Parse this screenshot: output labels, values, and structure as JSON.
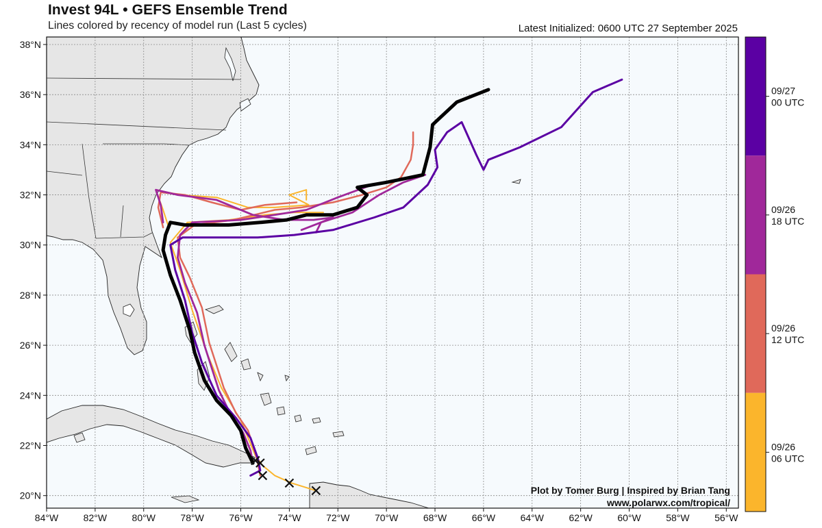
{
  "header": {
    "title": "Invest 94L • GEFS Ensemble Trend",
    "subtitle": "Lines colored by recency of model run (Last 5 cycles)",
    "initialized": "Latest Initialized: 0600 UTC 27 September 2025"
  },
  "credit": {
    "line1": "Plot by Tomer Burg | Inspired by Brian Tang",
    "line2": "www.polarwx.com/tropical/"
  },
  "colors": {
    "ocean": "#f6fafd",
    "land": "#e6e6e6",
    "latest": "#000000",
    "c_0927_00": "#5b00a3",
    "c_0926_18": "#a0289a",
    "c_0926_12": "#e0695a",
    "c_0926_06": "#fbb52c"
  },
  "axes": {
    "lon_labels": [
      "84°W",
      "82°W",
      "80°W",
      "78°W",
      "76°W",
      "74°W",
      "72°W",
      "70°W",
      "68°W",
      "66°W",
      "64°W",
      "62°W",
      "60°W",
      "58°W",
      "56°W"
    ],
    "lat_labels": [
      "20°N",
      "22°N",
      "24°N",
      "26°N",
      "28°N",
      "30°N",
      "32°N",
      "34°N",
      "36°N",
      "38°N"
    ]
  },
  "colorbar": [
    {
      "line1": "09/27",
      "line2": "00 UTC",
      "color": "#5b00a3"
    },
    {
      "line1": "09/26",
      "line2": "18 UTC",
      "color": "#a0289a"
    },
    {
      "line1": "09/26",
      "line2": "12 UTC",
      "color": "#e0695a"
    },
    {
      "line1": "09/26",
      "line2": "06 UTC",
      "color": "#fbb52c"
    }
  ],
  "map_data": {
    "lon_range": [
      -84,
      -55.5
    ],
    "lat_range": [
      19.5,
      38.3
    ],
    "tracks": [
      {
        "name": "0926-06z",
        "color": "#fbb52c",
        "width": 2,
        "points": [
          [
            -72.9,
            20.2
          ],
          [
            -73.9,
            20.5
          ],
          [
            -74.6,
            20.8
          ],
          [
            -75.1,
            21.2
          ],
          [
            -75.4,
            21.6
          ],
          [
            -76.0,
            23.0
          ],
          [
            -76.8,
            24.3
          ],
          [
            -77.4,
            25.7
          ],
          [
            -78.0,
            27.4
          ],
          [
            -78.5,
            29.0
          ],
          [
            -78.9,
            30.1
          ],
          [
            -78.2,
            30.9
          ],
          [
            -76.5,
            31.0
          ],
          [
            -75.0,
            31.2
          ],
          [
            -73.8,
            31.3
          ],
          [
            -72.6,
            31.3
          ]
        ]
      },
      {
        "name": "0926-06z-b",
        "color": "#fbb52c",
        "width": 2,
        "points": [
          [
            -79.0,
            30.8
          ],
          [
            -79.2,
            31.4
          ],
          [
            -79.5,
            32.2
          ],
          [
            -78.5,
            32.0
          ],
          [
            -77.0,
            31.9
          ],
          [
            -75.7,
            31.5
          ],
          [
            -74.6,
            31.5
          ],
          [
            -73.2,
            31.6
          ],
          [
            -74.0,
            32.0
          ],
          [
            -73.3,
            32.2
          ],
          [
            -73.3,
            31.8
          ]
        ]
      },
      {
        "name": "0926-12z",
        "color": "#e0695a",
        "width": 2.5,
        "points": [
          [
            -75.2,
            20.8
          ],
          [
            -75.3,
            21.3
          ],
          [
            -75.4,
            21.7
          ],
          [
            -75.7,
            22.6
          ],
          [
            -76.2,
            23.3
          ],
          [
            -76.7,
            24.3
          ],
          [
            -77.0,
            25.2
          ],
          [
            -77.3,
            26.1
          ],
          [
            -77.6,
            27.5
          ],
          [
            -78.1,
            28.7
          ],
          [
            -78.5,
            29.5
          ],
          [
            -78.6,
            30.3
          ],
          [
            -77.9,
            30.8
          ],
          [
            -76.3,
            31.0
          ],
          [
            -74.6,
            31.4
          ],
          [
            -73.5,
            31.5
          ],
          [
            -72.2,
            31.7
          ],
          [
            -71.0,
            32.0
          ],
          [
            -70.0,
            32.3
          ],
          [
            -69.4,
            32.7
          ],
          [
            -69.0,
            33.4
          ],
          [
            -68.9,
            34.0
          ],
          [
            -68.9,
            34.5
          ]
        ]
      },
      {
        "name": "0926-12z-b",
        "color": "#e0695a",
        "width": 2.5,
        "points": [
          [
            -79.2,
            30.7
          ],
          [
            -79.4,
            31.5
          ],
          [
            -79.3,
            32.1
          ],
          [
            -78.3,
            32.0
          ],
          [
            -77.2,
            31.7
          ],
          [
            -76.0,
            31.4
          ],
          [
            -75.0,
            31.6
          ],
          [
            -73.7,
            31.7
          ]
        ]
      },
      {
        "name": "0926-18z",
        "color": "#a0289a",
        "width": 2.8,
        "points": [
          [
            -75.5,
            21.3
          ],
          [
            -75.6,
            21.8
          ],
          [
            -75.9,
            22.5
          ],
          [
            -76.4,
            23.2
          ],
          [
            -76.9,
            24.2
          ],
          [
            -77.2,
            25.1
          ],
          [
            -77.5,
            26.0
          ],
          [
            -77.8,
            27.3
          ],
          [
            -78.3,
            28.5
          ],
          [
            -78.6,
            29.5
          ],
          [
            -78.5,
            30.4
          ],
          [
            -78.0,
            30.9
          ],
          [
            -76.0,
            31.0
          ],
          [
            -74.6,
            31.2
          ],
          [
            -73.3,
            31.4
          ],
          [
            -72.0,
            31.9
          ],
          [
            -70.6,
            32.4
          ],
          [
            -69.6,
            32.6
          ],
          [
            -68.4,
            32.8
          ],
          [
            -69.3,
            32.5
          ],
          [
            -70.3,
            32.0
          ],
          [
            -71.4,
            31.3
          ],
          [
            -72.7,
            30.9
          ],
          [
            -73.5,
            30.6
          ]
        ]
      },
      {
        "name": "0926-18z-b",
        "color": "#a0289a",
        "width": 2.8,
        "points": [
          [
            -79.2,
            30.9
          ],
          [
            -79.3,
            31.6
          ],
          [
            -79.5,
            32.2
          ],
          [
            -78.6,
            32.0
          ],
          [
            -77.0,
            31.8
          ],
          [
            -75.5,
            31.2
          ],
          [
            -74.2,
            31.0
          ],
          [
            -73.0,
            31.0
          ],
          [
            -72.2,
            31.1
          ],
          [
            -72.7,
            30.9
          ],
          [
            -72.9,
            30.5
          ]
        ]
      },
      {
        "name": "0927-00z",
        "color": "#5b00a3",
        "width": 3,
        "points": [
          [
            -75.6,
            20.8
          ],
          [
            -75.2,
            21.0
          ],
          [
            -75.3,
            21.5
          ],
          [
            -75.6,
            22.3
          ],
          [
            -76.2,
            23.1
          ],
          [
            -77.0,
            24.0
          ],
          [
            -77.6,
            25.3
          ],
          [
            -78.0,
            26.5
          ],
          [
            -78.3,
            27.8
          ],
          [
            -78.7,
            29.0
          ],
          [
            -78.9,
            30.0
          ],
          [
            -78.4,
            30.3
          ],
          [
            -77.0,
            30.3
          ],
          [
            -75.3,
            30.3
          ],
          [
            -73.8,
            30.4
          ],
          [
            -72.2,
            30.6
          ],
          [
            -70.5,
            31.1
          ],
          [
            -69.3,
            31.5
          ],
          [
            -68.3,
            32.4
          ],
          [
            -67.9,
            33.1
          ],
          [
            -68.0,
            33.8
          ],
          [
            -67.5,
            34.5
          ],
          [
            -66.9,
            34.9
          ],
          [
            -66.3,
            33.6
          ],
          [
            -66.0,
            33.0
          ],
          [
            -65.8,
            33.4
          ],
          [
            -64.5,
            33.9
          ],
          [
            -62.8,
            34.7
          ],
          [
            -61.5,
            36.1
          ],
          [
            -60.3,
            36.6
          ]
        ]
      },
      {
        "name": "0927-06z",
        "color": "#000000",
        "width": 5,
        "points": [
          [
            -75.5,
            21.3
          ],
          [
            -75.8,
            21.9
          ],
          [
            -76.0,
            22.6
          ],
          [
            -76.4,
            23.2
          ],
          [
            -77.0,
            23.8
          ],
          [
            -77.5,
            24.6
          ],
          [
            -77.9,
            25.7
          ],
          [
            -78.1,
            26.6
          ],
          [
            -78.5,
            27.8
          ],
          [
            -78.9,
            28.8
          ],
          [
            -79.2,
            29.8
          ],
          [
            -79.1,
            30.4
          ],
          [
            -78.9,
            30.9
          ],
          [
            -78.3,
            30.8
          ],
          [
            -76.5,
            30.8
          ],
          [
            -75.2,
            30.9
          ],
          [
            -74.1,
            31.0
          ],
          [
            -73.3,
            31.2
          ],
          [
            -72.2,
            31.2
          ],
          [
            -71.2,
            31.5
          ],
          [
            -70.8,
            32.0
          ],
          [
            -71.2,
            32.3
          ],
          [
            -70.0,
            32.5
          ],
          [
            -68.5,
            32.8
          ],
          [
            -68.2,
            33.9
          ],
          [
            -68.1,
            34.8
          ],
          [
            -67.1,
            35.7
          ],
          [
            -65.8,
            36.2
          ]
        ]
      }
    ],
    "start_markers": [
      [
        -75.4,
        21.4
      ],
      [
        -75.2,
        21.3
      ],
      [
        -75.1,
        20.8
      ],
      [
        -74.0,
        20.5
      ],
      [
        -72.9,
        20.2
      ]
    ]
  }
}
